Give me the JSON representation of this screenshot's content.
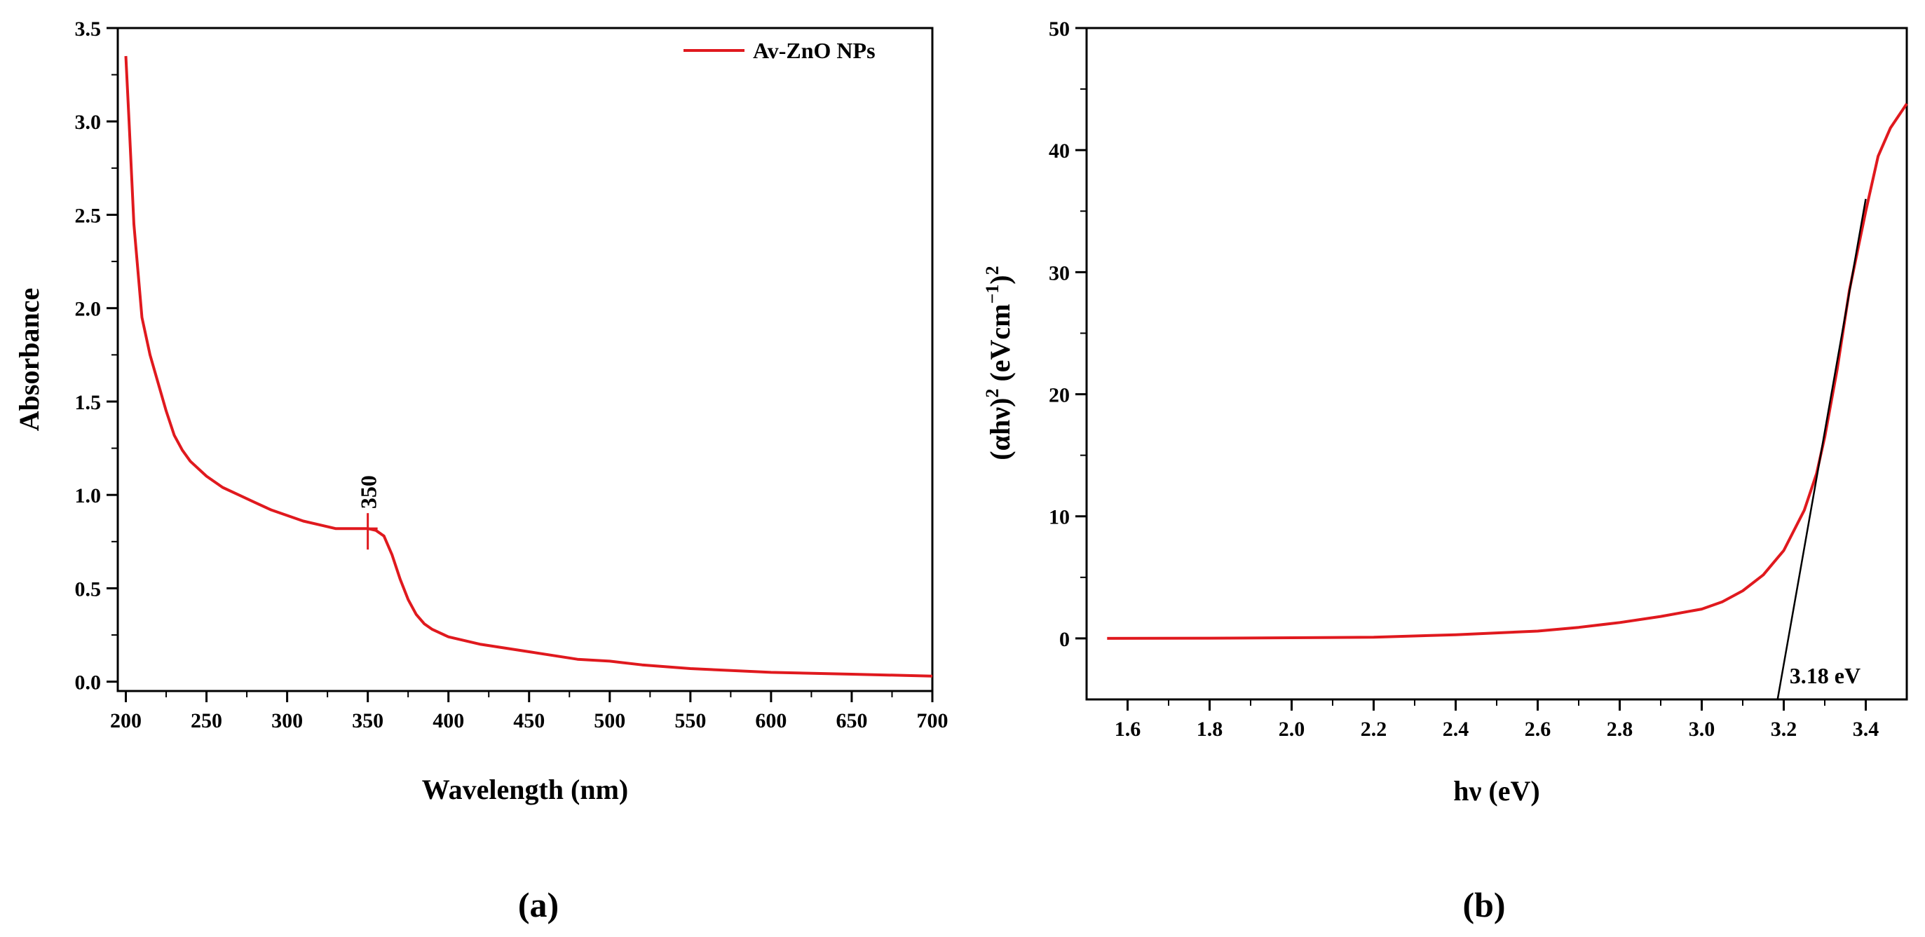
{
  "chart_data": [
    {
      "type": "line",
      "panel_label": "(a)",
      "xlabel": "Wavelength (nm)",
      "ylabel": "Absorbance",
      "xlim": [
        195,
        700
      ],
      "ylim": [
        -0.05,
        3.5
      ],
      "xticks": [
        200,
        250,
        300,
        350,
        400,
        450,
        500,
        550,
        600,
        650,
        700
      ],
      "xtick_labels": [
        "200",
        "250",
        "300",
        "350",
        "400",
        "450",
        "500",
        "550",
        "600",
        "650",
        "700"
      ],
      "yticks": [
        0.0,
        0.5,
        1.0,
        1.5,
        2.0,
        2.5,
        3.0,
        3.5
      ],
      "ytick_labels": [
        "0.0",
        "0.5",
        "1.0",
        "1.5",
        "2.0",
        "2.5",
        "3.0",
        "3.5"
      ],
      "grid": false,
      "legend": {
        "position": "top-right",
        "entries": [
          "Av-ZnO NPs"
        ]
      },
      "annotations": [
        {
          "x": 350,
          "y": 0.82,
          "text": "350"
        }
      ],
      "series": [
        {
          "name": "Av-ZnO NPs",
          "color": "#e0191e",
          "x": [
            200,
            202,
            205,
            210,
            215,
            220,
            225,
            230,
            235,
            240,
            250,
            260,
            270,
            280,
            290,
            300,
            310,
            320,
            330,
            340,
            350,
            355,
            360,
            365,
            370,
            375,
            380,
            385,
            390,
            400,
            420,
            450,
            480,
            500,
            520,
            550,
            600,
            650,
            700
          ],
          "y": [
            3.35,
            3.0,
            2.45,
            1.95,
            1.75,
            1.6,
            1.45,
            1.32,
            1.24,
            1.18,
            1.1,
            1.04,
            1.0,
            0.96,
            0.92,
            0.89,
            0.86,
            0.84,
            0.82,
            0.82,
            0.82,
            0.81,
            0.78,
            0.68,
            0.55,
            0.44,
            0.36,
            0.31,
            0.28,
            0.24,
            0.2,
            0.16,
            0.12,
            0.11,
            0.09,
            0.07,
            0.05,
            0.04,
            0.03
          ]
        }
      ]
    },
    {
      "type": "line",
      "panel_label": "(b)",
      "xlabel": "hν (eV)",
      "ylabel_parts": [
        "(αhν)",
        "2",
        " (eVcm",
        "−1",
        ")",
        "2"
      ],
      "xlim": [
        1.5,
        3.5
      ],
      "ylim": [
        -5,
        50
      ],
      "xticks": [
        1.6,
        1.8,
        2.0,
        2.2,
        2.4,
        2.6,
        2.8,
        3.0,
        3.2,
        3.4
      ],
      "xtick_labels": [
        "1.6",
        "1.8",
        "2.0",
        "2.2",
        "2.4",
        "2.6",
        "2.8",
        "3.0",
        "3.2",
        "3.4"
      ],
      "yticks": [
        0,
        10,
        20,
        30,
        40,
        50
      ],
      "ytick_labels": [
        "0",
        "10",
        "20",
        "30",
        "40",
        "50"
      ],
      "grid": false,
      "annotations": [
        {
          "x": 3.18,
          "y": -3,
          "text": "3.18 eV"
        }
      ],
      "series": [
        {
          "name": "",
          "color": "#e0191e",
          "x": [
            1.55,
            1.8,
            2.0,
            2.2,
            2.4,
            2.6,
            2.7,
            2.8,
            2.9,
            3.0,
            3.05,
            3.1,
            3.15,
            3.2,
            3.25,
            3.28,
            3.3,
            3.33,
            3.36,
            3.4,
            3.43,
            3.46,
            3.5
          ],
          "y": [
            0.0,
            0.02,
            0.05,
            0.1,
            0.3,
            0.6,
            0.9,
            1.3,
            1.8,
            2.4,
            3.0,
            3.9,
            5.2,
            7.2,
            10.5,
            13.5,
            16.5,
            22.0,
            28.5,
            35.0,
            39.5,
            41.8,
            43.8
          ]
        },
        {
          "name": "",
          "color": "#000000",
          "x": [
            3.185,
            3.4
          ],
          "y": [
            -5,
            36
          ]
        }
      ]
    }
  ]
}
